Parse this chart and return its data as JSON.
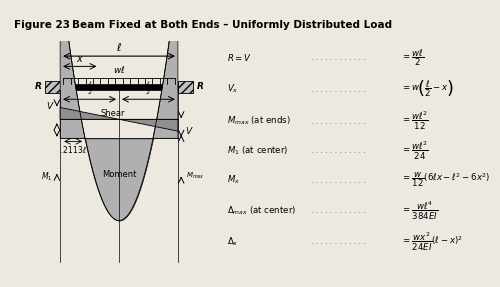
{
  "title_left": "Figure 23",
  "title_right": "Beam Fixed at Both Ends – Uniformly Distributed Load",
  "title_fontsize": 7.5,
  "bg_color": "#ede8e0",
  "title_bg": "#c8c4bc",
  "shear_fill": "#909090",
  "moment_fill": "#b0b0b0",
  "hatch_fill": "#c0c0c0",
  "eq_labels": [
    "$R = V$",
    "$V_x$",
    "$M_{max}$ (at ends)",
    "$M_1$ (at center)",
    "$M_x$",
    "$\\Delta_{max}$ (at center)",
    "$\\Delta_x$"
  ],
  "eq_rhs": [
    "$=\\dfrac{w\\ell}{2}$",
    "$=w\\!\\left(\\dfrac{\\ell}{2}-x\\right)$",
    "$=\\dfrac{w\\ell^2}{12}$",
    "$=\\dfrac{w\\ell^2}{24}$",
    "$=\\dfrac{w}{12}(6\\ell x-\\ell^2-6x^2)$",
    "$=\\dfrac{w\\ell^4}{384EI}$",
    "$=\\dfrac{wx^2}{24EI}(\\ell-x)^2$"
  ]
}
